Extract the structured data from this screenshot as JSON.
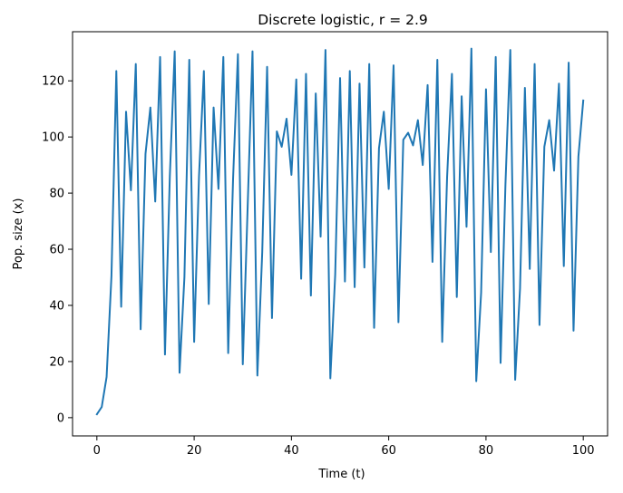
{
  "chart_data": {
    "type": "line",
    "title": "Discrete logistic, r = 2.9",
    "xlabel": "Time (t)",
    "ylabel": "Pop. size (x)",
    "xlim": [
      -5,
      105
    ],
    "ylim": [
      -6.5,
      137.5
    ],
    "xticks": [
      0,
      20,
      40,
      60,
      80,
      100
    ],
    "yticks": [
      0,
      20,
      40,
      60,
      80,
      100,
      120
    ],
    "grid": false,
    "series": [
      {
        "color": "#1f77b4",
        "x": [
          0,
          1,
          2,
          3,
          4,
          5,
          6,
          7,
          8,
          9,
          10,
          11,
          12,
          13,
          14,
          15,
          16,
          17,
          18,
          19,
          20,
          21,
          22,
          23,
          24,
          25,
          26,
          27,
          28,
          29,
          30,
          31,
          32,
          33,
          34,
          35,
          36,
          37,
          38,
          39,
          40,
          41,
          42,
          43,
          44,
          45,
          46,
          47,
          48,
          49,
          50,
          51,
          52,
          53,
          54,
          55,
          56,
          57,
          58,
          59,
          60,
          61,
          62,
          63,
          64,
          65,
          66,
          67,
          68,
          69,
          70,
          71,
          72,
          73,
          74,
          75,
          76,
          77,
          78,
          79,
          80,
          81,
          82,
          83,
          84,
          85,
          86,
          87,
          88,
          89,
          90,
          91,
          92,
          93,
          94,
          95,
          96,
          97,
          98,
          99,
          100
        ],
        "y": [
          1.2,
          3.8,
          14.5,
          50.5,
          123.5,
          39.5,
          109,
          81,
          126,
          31.5,
          94,
          110.5,
          77,
          128.5,
          22.5,
          86,
          130.5,
          16,
          50,
          127.5,
          27,
          86,
          123.5,
          40.5,
          110.5,
          81.5,
          128.5,
          23,
          85,
          129.5,
          19,
          75,
          130.5,
          15,
          59,
          125,
          35.5,
          102,
          96.5,
          106.5,
          86.5,
          120.5,
          49.5,
          122.5,
          43.5,
          115.5,
          64.5,
          131,
          14,
          51,
          121,
          48.5,
          123.5,
          46.5,
          119,
          53.5,
          126,
          32,
          96,
          109,
          81.5,
          125.5,
          34,
          99,
          101.5,
          97,
          106,
          90,
          118.5,
          55.5,
          127.5,
          27,
          85.5,
          122.5,
          43,
          114.5,
          68,
          131.5,
          13,
          44.5,
          117,
          59,
          128.5,
          19.5,
          83,
          131,
          13.5,
          46,
          117.5,
          53,
          126,
          33,
          96.5,
          106,
          88,
          119,
          54,
          126.5,
          31,
          93,
          113
        ]
      }
    ]
  }
}
